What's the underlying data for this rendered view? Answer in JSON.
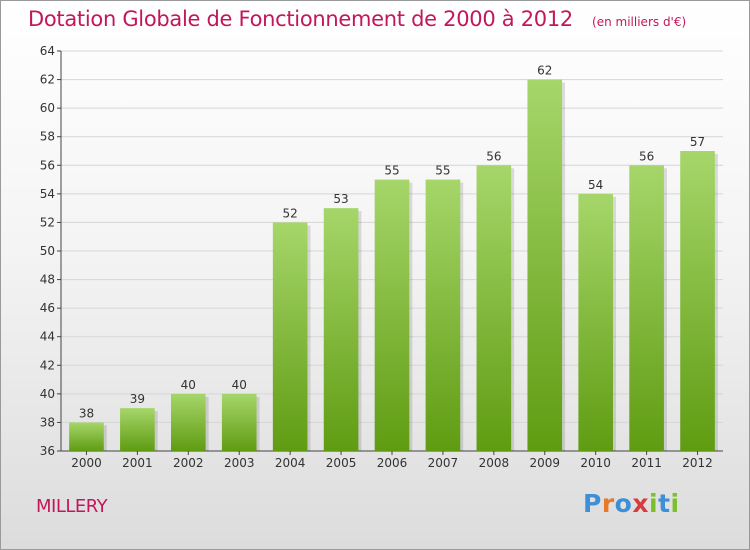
{
  "title": "Dotation Globale de Fonctionnement de 2000 à 2012",
  "unit": "(en milliers d'€)",
  "commune": "MILLERY",
  "logo": {
    "text": "Proxiti",
    "letters": [
      "P",
      "r",
      "o",
      "x",
      "i",
      "t",
      "i"
    ],
    "colors": [
      "#3d8fd6",
      "#e8792a",
      "#3d8fd6",
      "#d93c3c",
      "#7bbf2a",
      "#3d8fd6",
      "#7bbf2a"
    ]
  },
  "colors": {
    "bar_top": "#a6d66a",
    "bar_bottom": "#5f9c12",
    "axis": "#444444",
    "grid": "#d6d6d6",
    "label": "#333333",
    "title": "#c2185b"
  },
  "chart_data": {
    "type": "bar",
    "title": "Dotation Globale de Fonctionnement de 2000 à 2012",
    "xlabel": "",
    "ylabel": "",
    "categories": [
      "2000",
      "2001",
      "2002",
      "2003",
      "2004",
      "2005",
      "2006",
      "2007",
      "2008",
      "2009",
      "2010",
      "2011",
      "2012"
    ],
    "values": [
      38,
      39,
      40,
      40,
      52,
      53,
      55,
      55,
      56,
      62,
      54,
      56,
      57
    ],
    "ylim": [
      36,
      64
    ],
    "yticks": [
      36,
      38,
      40,
      42,
      44,
      46,
      48,
      50,
      52,
      54,
      56,
      58,
      60,
      62,
      64
    ],
    "grid": true,
    "data_labels": true
  }
}
